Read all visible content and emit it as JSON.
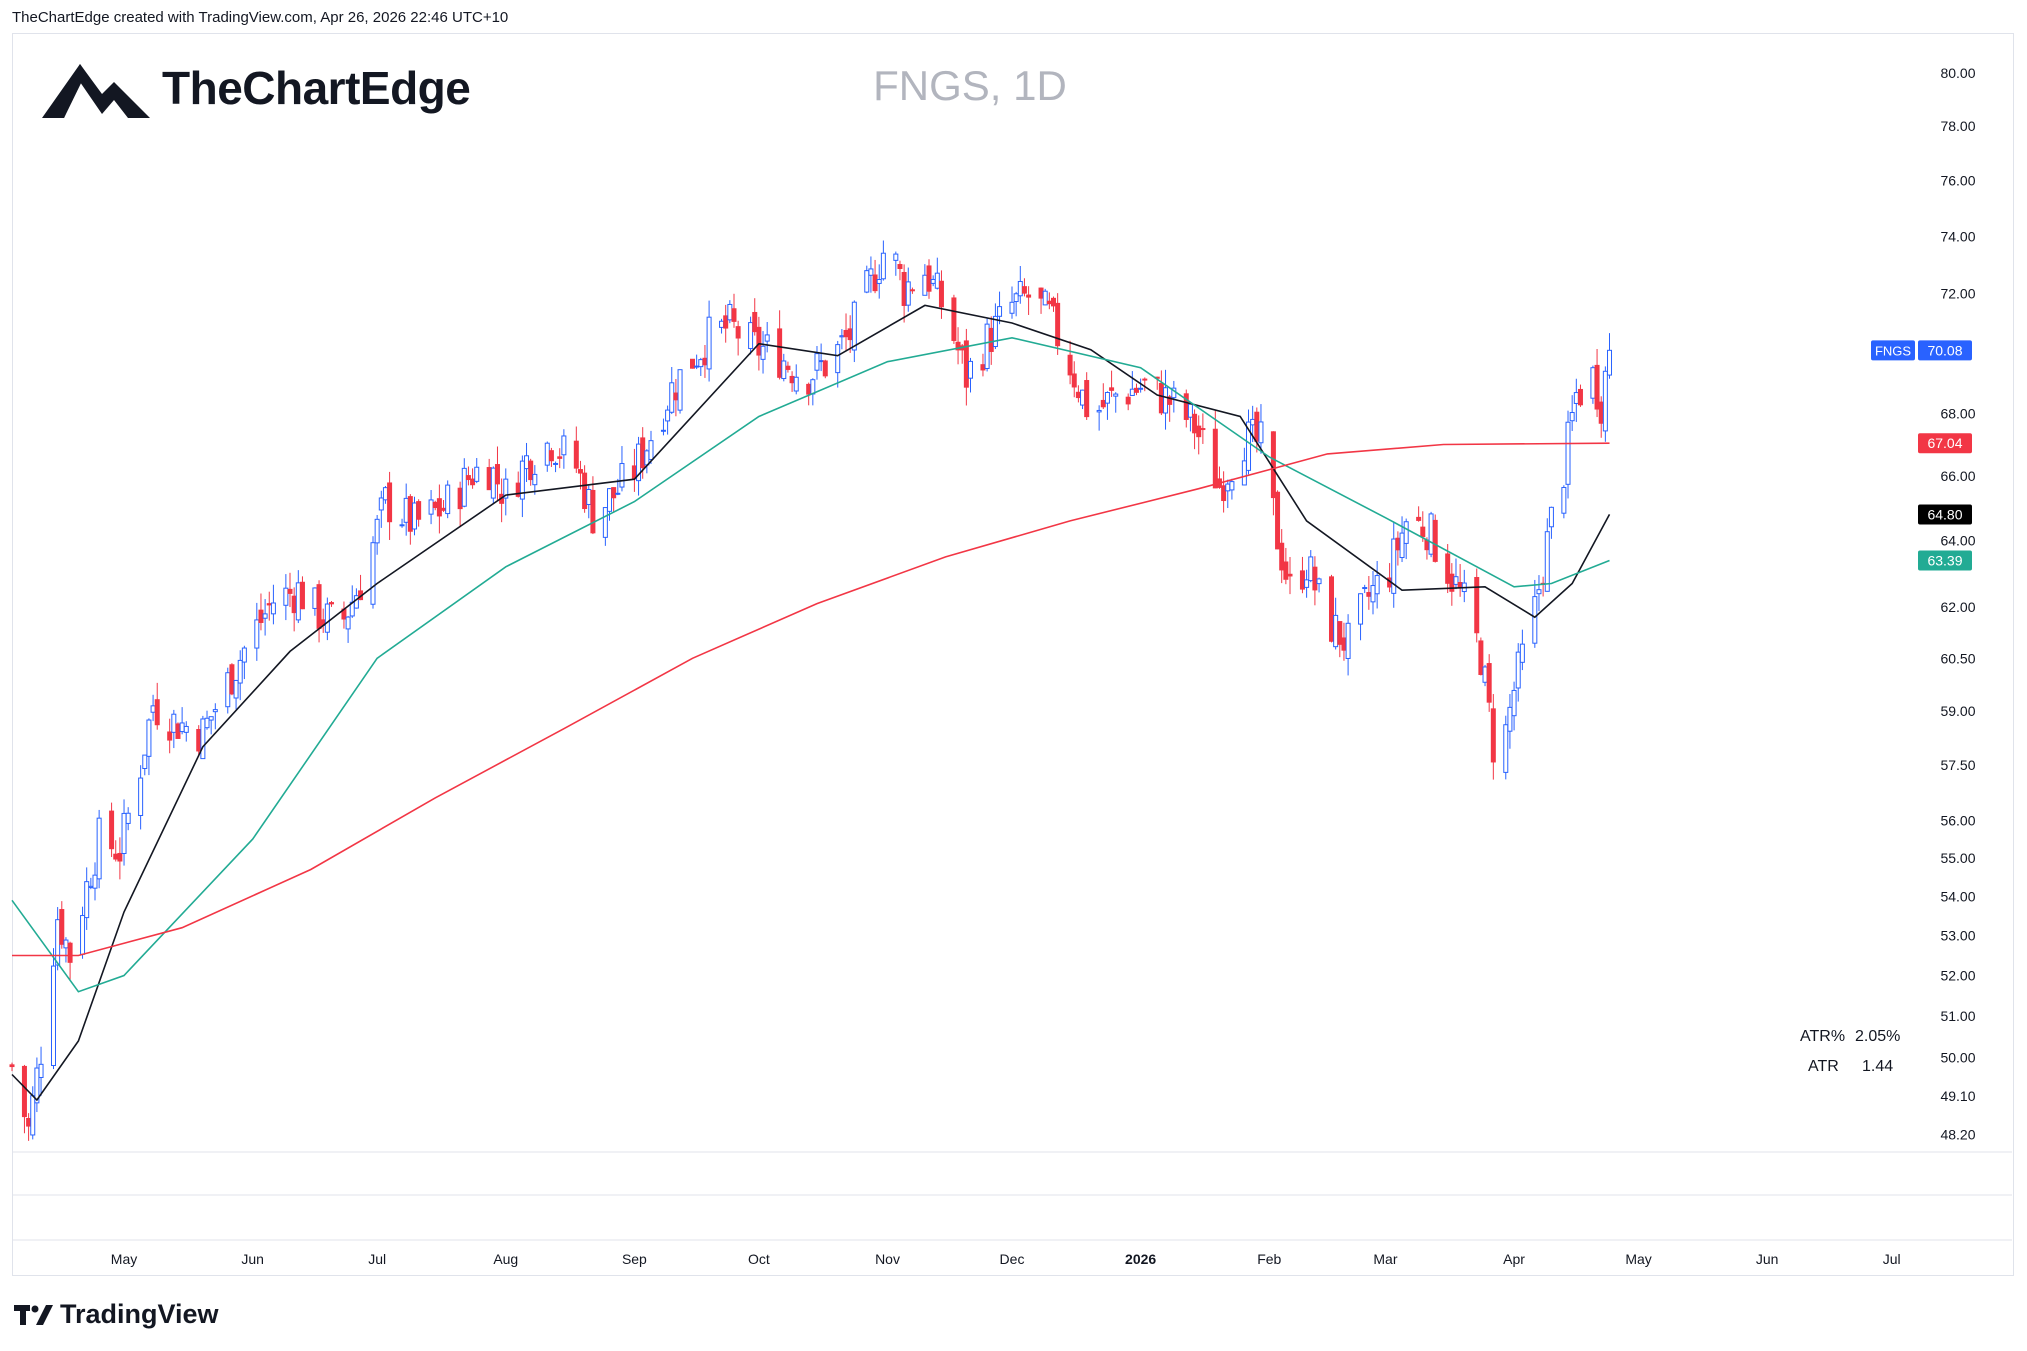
{
  "header": {
    "attribution": "TheChartEdge created with TradingView.com, Apr 26, 2026 22:46 UTC+10"
  },
  "branding": {
    "logo_text": "TheChartEdge",
    "footer_text": "TradingView"
  },
  "colors": {
    "up": "#2962ff",
    "down": "#f23645",
    "sma_fast": "#131722",
    "sma_mid": "#22ab94",
    "sma_slow": "#f23645"
  },
  "chart_data": {
    "type": "candlestick",
    "title": "FNGS, 1D",
    "symbol": "FNGS",
    "interval": "1D",
    "y_scale": "log",
    "ylim": [
      47.8,
      81.5
    ],
    "y_ticks": [
      "80.00",
      "78.00",
      "76.00",
      "74.00",
      "72.00",
      "68.00",
      "66.00",
      "64.00",
      "62.00",
      "60.50",
      "59.00",
      "57.50",
      "56.00",
      "55.00",
      "54.00",
      "53.00",
      "52.00",
      "51.00",
      "50.00",
      "49.10",
      "48.20"
    ],
    "x_labels": [
      {
        "label": "May",
        "date": "2025-05-01",
        "bold": false
      },
      {
        "label": "Jun",
        "date": "2025-06-01",
        "bold": false
      },
      {
        "label": "Jul",
        "date": "2025-07-01",
        "bold": false
      },
      {
        "label": "Aug",
        "date": "2025-08-01",
        "bold": false
      },
      {
        "label": "Sep",
        "date": "2025-09-01",
        "bold": false
      },
      {
        "label": "Oct",
        "date": "2025-10-01",
        "bold": false
      },
      {
        "label": "Nov",
        "date": "2025-11-01",
        "bold": false
      },
      {
        "label": "Dec",
        "date": "2025-12-01",
        "bold": false
      },
      {
        "label": "2026",
        "date": "2026-01-01",
        "bold": true
      },
      {
        "label": "Feb",
        "date": "2026-02-01",
        "bold": false
      },
      {
        "label": "Mar",
        "date": "2026-03-01",
        "bold": false
      },
      {
        "label": "Apr",
        "date": "2026-04-01",
        "bold": false
      },
      {
        "label": "May",
        "date": "2026-05-01",
        "bold": false
      },
      {
        "label": "Jun",
        "date": "2026-06-01",
        "bold": false
      },
      {
        "label": "Jul",
        "date": "2026-07-01",
        "bold": false
      }
    ],
    "xlim": [
      "2025-04-04",
      "2026-07-30"
    ],
    "close_path": [
      [
        "2025-04-04",
        49.8
      ],
      [
        "2025-04-08",
        48.3
      ],
      [
        "2025-04-11",
        50.2
      ],
      [
        "2025-04-15",
        53.5
      ],
      [
        "2025-04-18",
        52.5
      ],
      [
        "2025-04-23",
        54.7
      ],
      [
        "2025-04-25",
        55.5
      ],
      [
        "2025-04-30",
        55.2
      ],
      [
        "2025-05-05",
        57.5
      ],
      [
        "2025-05-08",
        59.2
      ],
      [
        "2025-05-13",
        58.7
      ],
      [
        "2025-05-20",
        58.4
      ],
      [
        "2025-05-26",
        59.8
      ],
      [
        "2025-05-31",
        61.0
      ],
      [
        "2025-06-06",
        62.2
      ],
      [
        "2025-06-12",
        62.5
      ],
      [
        "2025-06-17",
        61.8
      ],
      [
        "2025-06-22",
        61.4
      ],
      [
        "2025-06-28",
        63.0
      ],
      [
        "2025-07-03",
        65.2
      ],
      [
        "2025-07-10",
        64.5
      ],
      [
        "2025-07-17",
        65.0
      ],
      [
        "2025-07-24",
        66.1
      ],
      [
        "2025-07-28",
        66.3
      ],
      [
        "2025-08-01",
        65.4
      ],
      [
        "2025-08-06",
        66.5
      ],
      [
        "2025-08-12",
        67.1
      ],
      [
        "2025-08-18",
        66.3
      ],
      [
        "2025-08-22",
        64.8
      ],
      [
        "2025-08-27",
        65.4
      ],
      [
        "2025-09-01",
        66.2
      ],
      [
        "2025-09-05",
        67.3
      ],
      [
        "2025-09-10",
        68.8
      ],
      [
        "2025-09-15",
        69.8
      ],
      [
        "2025-09-19",
        70.5
      ],
      [
        "2025-09-24",
        70.9
      ],
      [
        "2025-09-30",
        70.2
      ],
      [
        "2025-10-05",
        70.0
      ],
      [
        "2025-10-12",
        69.2
      ],
      [
        "2025-10-18",
        69.7
      ],
      [
        "2025-10-23",
        70.6
      ],
      [
        "2025-10-28",
        72.4
      ],
      [
        "2025-11-01",
        73.8
      ],
      [
        "2025-11-05",
        72.2
      ],
      [
        "2025-11-10",
        72.8
      ],
      [
        "2025-11-15",
        71.4
      ],
      [
        "2025-11-20",
        69.2
      ],
      [
        "2025-11-25",
        70.4
      ],
      [
        "2025-12-01",
        71.6
      ],
      [
        "2025-12-05",
        71.9
      ],
      [
        "2025-12-10",
        71.2
      ],
      [
        "2025-12-15",
        69.6
      ],
      [
        "2025-12-20",
        67.9
      ],
      [
        "2025-12-26",
        68.6
      ],
      [
        "2026-01-02",
        68.9
      ],
      [
        "2026-01-08",
        68.4
      ],
      [
        "2026-01-14",
        67.6
      ],
      [
        "2026-01-20",
        65.7
      ],
      [
        "2026-01-26",
        67.2
      ],
      [
        "2026-01-30",
        67.0
      ],
      [
        "2026-02-03",
        64.1
      ],
      [
        "2026-02-06",
        62.5
      ],
      [
        "2026-02-10",
        63.3
      ],
      [
        "2026-02-15",
        61.6
      ],
      [
        "2026-02-20",
        60.9
      ],
      [
        "2026-02-25",
        62.3
      ],
      [
        "2026-03-02",
        63.1
      ],
      [
        "2026-03-06",
        64.6
      ],
      [
        "2026-03-11",
        64.4
      ],
      [
        "2026-03-15",
        63.4
      ],
      [
        "2026-03-20",
        62.1
      ],
      [
        "2026-03-24",
        60.6
      ],
      [
        "2026-03-28",
        57.2
      ],
      [
        "2026-04-01",
        59.6
      ],
      [
        "2026-04-06",
        61.9
      ],
      [
        "2026-04-10",
        64.6
      ],
      [
        "2026-04-13",
        66.2
      ],
      [
        "2026-04-16",
        68.6
      ],
      [
        "2026-04-20",
        69.2
      ],
      [
        "2026-04-22",
        68.4
      ],
      [
        "2026-04-24",
        70.08
      ]
    ],
    "series": [
      {
        "kind": "sma",
        "points": [
          [
            "2025-04-04",
            49.6
          ],
          [
            "2025-04-10",
            49.0
          ],
          [
            "2025-04-20",
            50.4
          ],
          [
            "2025-05-01",
            53.6
          ],
          [
            "2025-05-20",
            58.0
          ],
          [
            "2025-06-10",
            60.7
          ],
          [
            "2025-07-01",
            62.7
          ],
          [
            "2025-08-01",
            65.4
          ],
          [
            "2025-09-01",
            65.9
          ],
          [
            "2025-10-01",
            70.3
          ],
          [
            "2025-10-20",
            69.9
          ],
          [
            "2025-11-10",
            71.6
          ],
          [
            "2025-12-01",
            71.0
          ],
          [
            "2025-12-20",
            70.1
          ],
          [
            "2026-01-05",
            68.6
          ],
          [
            "2026-01-25",
            67.9
          ],
          [
            "2026-02-10",
            64.6
          ],
          [
            "2026-03-05",
            62.5
          ],
          [
            "2026-03-25",
            62.6
          ],
          [
            "2026-04-06",
            61.7
          ],
          [
            "2026-04-15",
            62.7
          ],
          [
            "2026-04-24",
            64.8
          ]
        ]
      },
      {
        "kind": "sma",
        "points": [
          [
            "2025-04-04",
            53.9
          ],
          [
            "2025-04-20",
            51.6
          ],
          [
            "2025-05-01",
            52.0
          ],
          [
            "2025-06-01",
            55.5
          ],
          [
            "2025-07-01",
            60.5
          ],
          [
            "2025-08-01",
            63.2
          ],
          [
            "2025-09-01",
            65.2
          ],
          [
            "2025-10-01",
            67.9
          ],
          [
            "2025-11-01",
            69.7
          ],
          [
            "2025-12-01",
            70.5
          ],
          [
            "2026-01-01",
            69.5
          ],
          [
            "2026-02-01",
            66.6
          ],
          [
            "2026-03-01",
            64.7
          ],
          [
            "2026-04-01",
            62.6
          ],
          [
            "2026-04-10",
            62.7
          ],
          [
            "2026-04-24",
            63.39
          ]
        ]
      },
      {
        "kind": "sma",
        "points": [
          [
            "2025-04-04",
            52.5
          ],
          [
            "2025-04-20",
            52.5
          ],
          [
            "2025-05-15",
            53.2
          ],
          [
            "2025-06-15",
            54.7
          ],
          [
            "2025-07-15",
            56.6
          ],
          [
            "2025-08-15",
            58.5
          ],
          [
            "2025-09-15",
            60.5
          ],
          [
            "2025-10-15",
            62.1
          ],
          [
            "2025-11-15",
            63.5
          ],
          [
            "2025-12-15",
            64.6
          ],
          [
            "2026-01-15",
            65.6
          ],
          [
            "2026-02-15",
            66.7
          ],
          [
            "2026-03-15",
            67.0
          ],
          [
            "2026-04-24",
            67.04
          ]
        ]
      }
    ],
    "price_tags": [
      {
        "label": "70.08",
        "value": 70.08,
        "color": "#2962ff",
        "symbol": "FNGS"
      },
      {
        "label": "67.04",
        "value": 67.04,
        "color": "#f23645"
      },
      {
        "label": "64.80",
        "value": 64.8,
        "color": "#000000"
      },
      {
        "label": "63.39",
        "value": 63.39,
        "color": "#22ab94"
      }
    ],
    "indicators": [
      {
        "label": "ATR%",
        "value": "2.05%"
      },
      {
        "label": "ATR",
        "value": "1.44"
      }
    ]
  }
}
